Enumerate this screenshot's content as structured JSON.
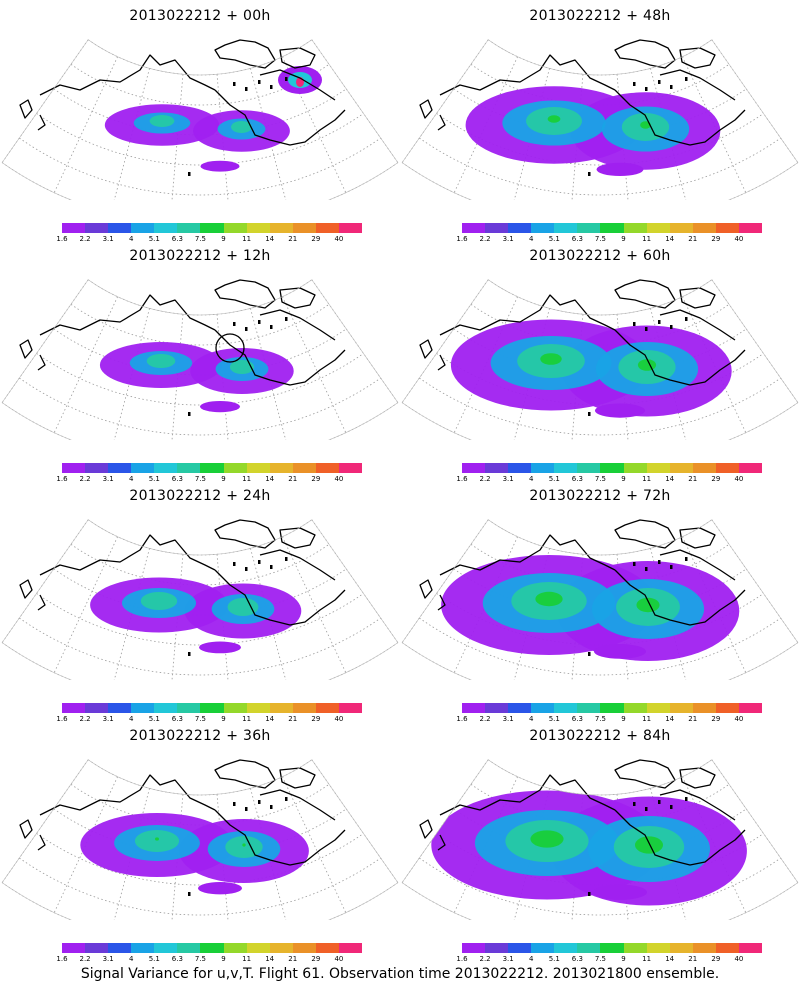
{
  "colorbar": {
    "colors": [
      "#a020f0",
      "#6a3ad8",
      "#2a55e8",
      "#19a3e6",
      "#22c7d8",
      "#26c9a4",
      "#18cf38",
      "#94d82a",
      "#d2d42c",
      "#e6b42c",
      "#ea9128",
      "#f06028",
      "#f02878"
    ],
    "labels": [
      "1.6",
      "2.2",
      "3.1",
      "4",
      "5.1",
      "6.3",
      "7.5",
      "9",
      "11",
      "14",
      "21",
      "29",
      "40"
    ]
  },
  "panels": [
    {
      "title": "2013022212 + 00h",
      "intensity": 0.15
    },
    {
      "title": "2013022212 + 48h",
      "intensity": 0.55
    },
    {
      "title": "2013022212 + 12h",
      "intensity": 0.2
    },
    {
      "title": "2013022212 + 60h",
      "intensity": 0.7
    },
    {
      "title": "2013022212 + 24h",
      "intensity": 0.3
    },
    {
      "title": "2013022212 + 72h",
      "intensity": 0.8
    },
    {
      "title": "2013022212 + 36h",
      "intensity": 0.4
    },
    {
      "title": "2013022212 + 84h",
      "intensity": 0.9
    }
  ],
  "footer": "Signal Variance for u,v,T. Flight 61. Observation time 2013022212. 2013021800 ensemble."
}
